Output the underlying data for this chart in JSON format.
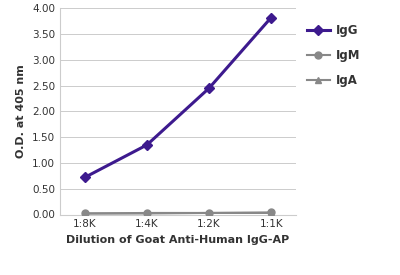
{
  "x_labels": [
    "1:8K",
    "1:4K",
    "1:2K",
    "1:1K"
  ],
  "x_positions": [
    0,
    1,
    2,
    3
  ],
  "igg_values": [
    0.72,
    1.35,
    2.45,
    3.82
  ],
  "igm_values": [
    0.02,
    0.03,
    0.03,
    0.04
  ],
  "iga_values": [
    0.02,
    0.02,
    0.03,
    0.03
  ],
  "igg_color": "#3d1a8e",
  "igm_color": "#888888",
  "iga_color": "#888888",
  "ylabel": "O.D. at 405 nm",
  "xlabel": "Dilution of Goat Anti-Human IgG-AP",
  "ylim": [
    0.0,
    4.0
  ],
  "yticks": [
    0.0,
    0.5,
    1.0,
    1.5,
    2.0,
    2.5,
    3.0,
    3.5,
    4.0
  ],
  "ytick_labels": [
    "0.00",
    "0.50",
    "1.00",
    "1.50",
    "2.00",
    "2.50",
    "3.00",
    "3.50",
    "4.00"
  ],
  "legend_labels": [
    "IgG",
    "IgM",
    "IgA"
  ],
  "background_color": "#ffffff",
  "plot_bg_color": "#ffffff",
  "grid_color": "#cccccc",
  "marker_size": 5,
  "igg_linewidth": 2.2,
  "igm_linewidth": 1.5,
  "iga_linewidth": 1.5
}
